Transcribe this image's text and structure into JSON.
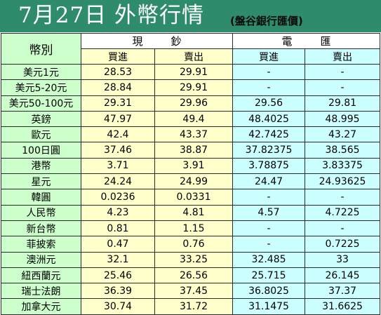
{
  "header": {
    "title": "7月27日 外幣行情",
    "subtitle": "(盤谷銀行匯價)"
  },
  "table": {
    "currency_header": "幣別",
    "group_cash": "現鈔",
    "group_telegraphic": "電匯",
    "buy_label": "買進",
    "sell_label": "賣出",
    "rows": [
      {
        "currency": "美元1元",
        "cash_buy": "28.53",
        "cash_sell": "29.91",
        "tt_buy": "-",
        "tt_sell": "-"
      },
      {
        "currency": "美元5-20元",
        "cash_buy": "28.84",
        "cash_sell": "29.91",
        "tt_buy": "-",
        "tt_sell": "-"
      },
      {
        "currency": "美元50-100元",
        "cash_buy": "29.31",
        "cash_sell": "29.96",
        "tt_buy": "29.56",
        "tt_sell": "29.81"
      },
      {
        "currency": "英鎊",
        "cash_buy": "47.97",
        "cash_sell": "49.4",
        "tt_buy": "48.4025",
        "tt_sell": "48.995"
      },
      {
        "currency": "歐元",
        "cash_buy": "42.4",
        "cash_sell": "43.37",
        "tt_buy": "42.7425",
        "tt_sell": "43.27"
      },
      {
        "currency": "100日圓",
        "cash_buy": "37.46",
        "cash_sell": "38.87",
        "tt_buy": "37.82375",
        "tt_sell": "38.565"
      },
      {
        "currency": "港幣",
        "cash_buy": "3.71",
        "cash_sell": "3.91",
        "tt_buy": "3.78875",
        "tt_sell": "3.83375"
      },
      {
        "currency": "星元",
        "cash_buy": "24.24",
        "cash_sell": "24.99",
        "tt_buy": "24.47",
        "tt_sell": "24.93625"
      },
      {
        "currency": "韓圓",
        "cash_buy": "0.0236",
        "cash_sell": "0.0331",
        "tt_buy": "-",
        "tt_sell": "-"
      },
      {
        "currency": "人民幣",
        "cash_buy": "4.23",
        "cash_sell": "4.81",
        "tt_buy": "4.57",
        "tt_sell": "4.7225"
      },
      {
        "currency": "新台幣",
        "cash_buy": "0.81",
        "cash_sell": "1.15",
        "tt_buy": "-",
        "tt_sell": "-"
      },
      {
        "currency": "菲披索",
        "cash_buy": "0.47",
        "cash_sell": "0.76",
        "tt_buy": "-",
        "tt_sell": "0.7225"
      },
      {
        "currency": "澳洲元",
        "cash_buy": "32.1",
        "cash_sell": "33.25",
        "tt_buy": "32.485",
        "tt_sell": "33"
      },
      {
        "currency": "紐西蘭元",
        "cash_buy": "25.46",
        "cash_sell": "26.56",
        "tt_buy": "25.715",
        "tt_sell": "26.145"
      },
      {
        "currency": "瑞士法朗",
        "cash_buy": "36.39",
        "cash_sell": "37.45",
        "tt_buy": "36.8025",
        "tt_sell": "37.37"
      },
      {
        "currency": "加拿大元",
        "cash_buy": "30.74",
        "cash_sell": "31.72",
        "tt_buy": "31.1475",
        "tt_sell": "31.6625"
      }
    ]
  },
  "colors": {
    "banner": "#2e8b6b",
    "currency_column": "#ccffcc",
    "cash_cells": "#ffffcc",
    "telegraphic_cells": "#ccffff"
  }
}
